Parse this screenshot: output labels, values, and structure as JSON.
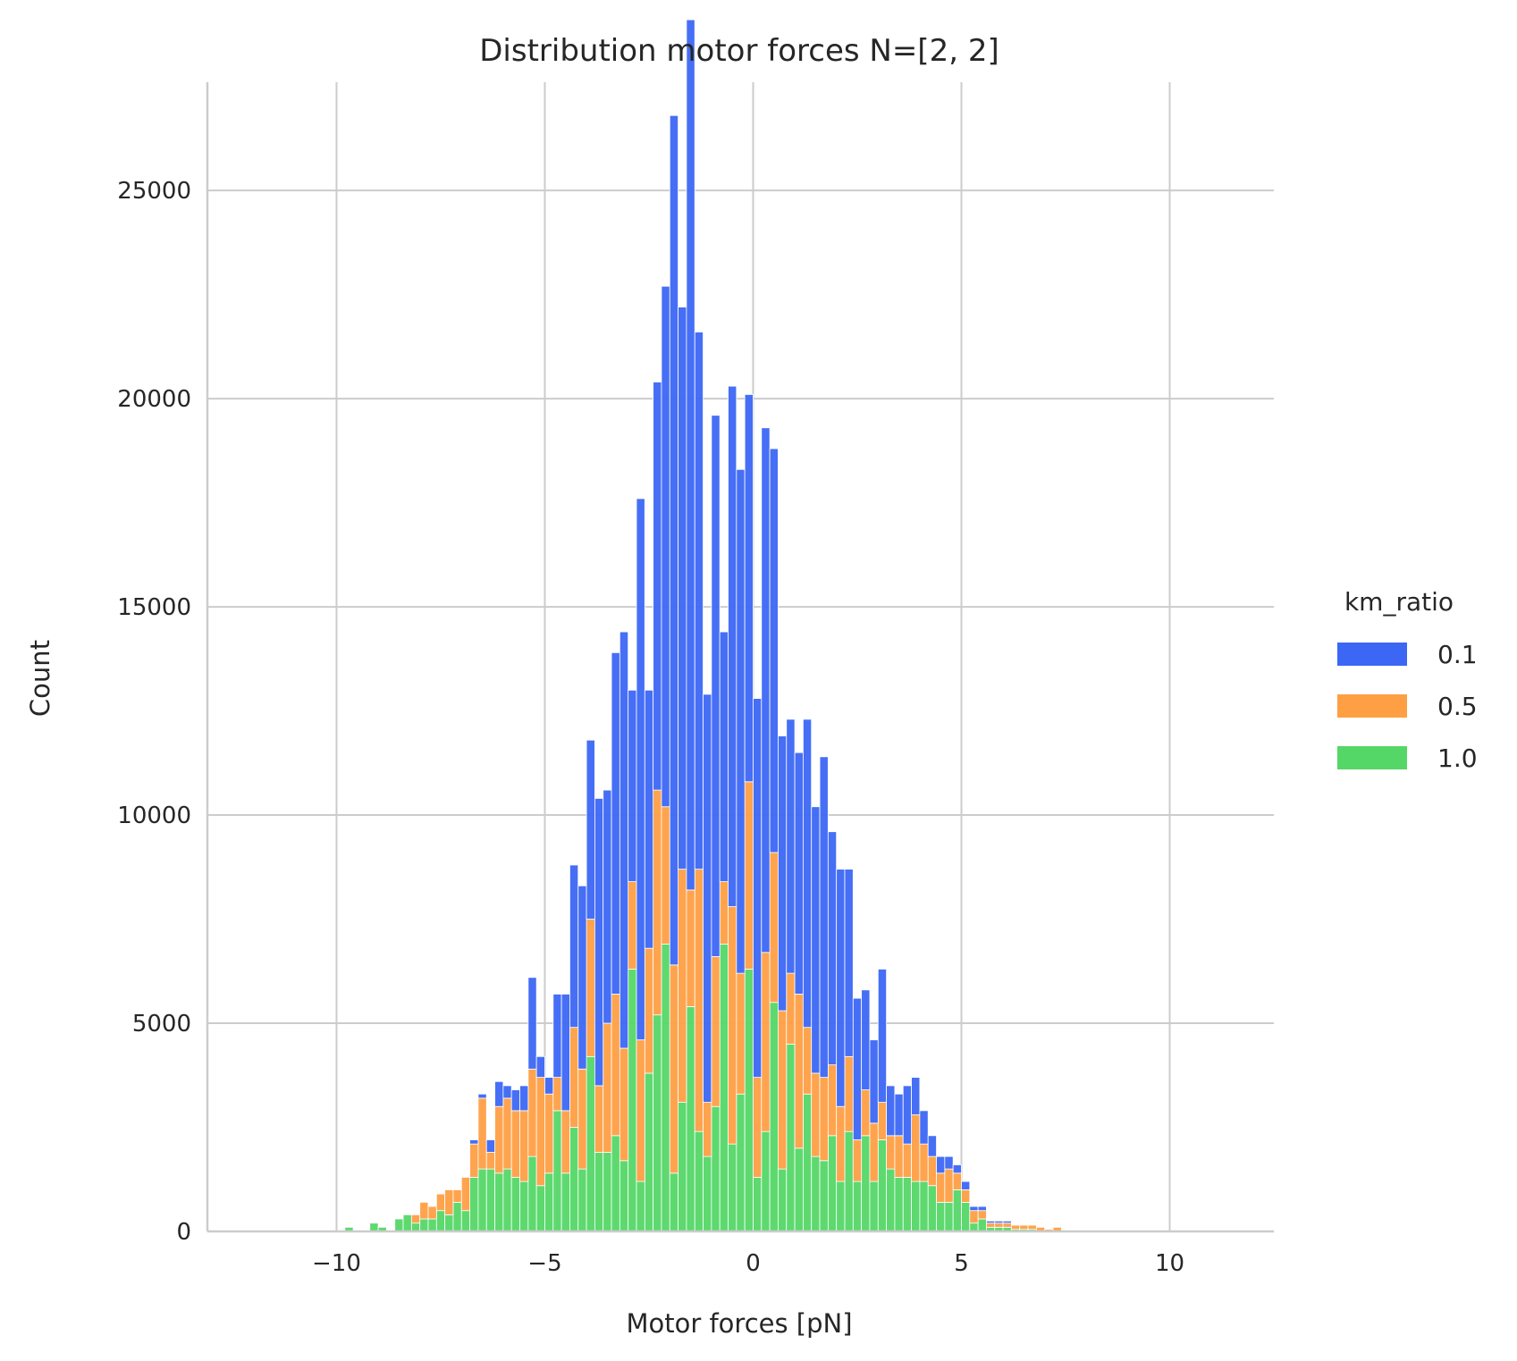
{
  "chart_data": {
    "type": "bar",
    "title": "Distribution motor forces N=[2, 2]",
    "xlabel": "Motor forces [pN]",
    "ylabel": "Count",
    "xlim": [
      -13.1,
      12.5
    ],
    "ylim": [
      0,
      27600
    ],
    "stacked": true,
    "grid": true,
    "legend_position": "right",
    "xticks": [
      {
        "value": -10,
        "label": "−10"
      },
      {
        "value": -5,
        "label": "−5"
      },
      {
        "value": 0,
        "label": "0"
      },
      {
        "value": 5,
        "label": "5"
      },
      {
        "value": 10,
        "label": "10"
      }
    ],
    "yticks": [
      {
        "value": 0,
        "label": "0"
      },
      {
        "value": 5000,
        "label": "5000"
      },
      {
        "value": 10000,
        "label": "10000"
      },
      {
        "value": 15000,
        "label": "15000"
      },
      {
        "value": 20000,
        "label": "20000"
      },
      {
        "value": 25000,
        "label": "25000"
      }
    ],
    "legend_title": "km_ratio",
    "bin_start": -9.8,
    "bin_width": 0.2,
    "series": [
      {
        "name": "1.0",
        "color": "#55d767",
        "values": [
          100,
          0,
          0,
          200,
          100,
          0,
          300,
          400,
          200,
          300,
          300,
          500,
          400,
          700,
          500,
          1300,
          1500,
          1500,
          1400,
          1500,
          1300,
          1200,
          1800,
          1100,
          1400,
          2900,
          1400,
          2500,
          1500,
          4200,
          1900,
          1900,
          2300,
          1700,
          6300,
          1200,
          3800,
          5200,
          6900,
          1400,
          3100,
          5400,
          2400,
          1800,
          3000,
          6900,
          2100,
          3300,
          6300,
          1300,
          2400,
          5500,
          1500,
          4500,
          2000,
          3300,
          1800,
          1700,
          2300,
          1200,
          2400,
          1200,
          2300,
          1200,
          2200,
          1500,
          1300,
          1300,
          1200,
          1200,
          1100,
          700,
          700,
          1000,
          700,
          200,
          300,
          100,
          100,
          100,
          50,
          50,
          50,
          0,
          0,
          0
        ]
      },
      {
        "name": "0.5",
        "color": "#ff9f44",
        "values": [
          0,
          0,
          0,
          0,
          0,
          0,
          0,
          0,
          200,
          400,
          300,
          400,
          600,
          300,
          800,
          800,
          1700,
          400,
          1600,
          1700,
          1600,
          1700,
          2100,
          2600,
          1900,
          800,
          1500,
          2400,
          2400,
          3300,
          1600,
          3100,
          3400,
          2700,
          2100,
          3400,
          3000,
          5400,
          3300,
          5000,
          5600,
          2800,
          6300,
          1300,
          3600,
          1500,
          5700,
          2900,
          4500,
          2400,
          4300,
          3600,
          3800,
          1700,
          3700,
          1600,
          2000,
          2000,
          1700,
          1800,
          1800,
          1000,
          1100,
          1400,
          900,
          800,
          1000,
          800,
          1600,
          900,
          700,
          700,
          800,
          400,
          300,
          300,
          200,
          100,
          100,
          100,
          100,
          100,
          100,
          100,
          50,
          100
        ]
      },
      {
        "name": "0.1",
        "color": "#3c67f5",
        "values": [
          0,
          0,
          0,
          0,
          0,
          0,
          0,
          0,
          0,
          0,
          0,
          0,
          0,
          0,
          0,
          100,
          100,
          300,
          600,
          300,
          500,
          600,
          2200,
          500,
          400,
          2000,
          2800,
          3900,
          4400,
          4300,
          6900,
          5600,
          8200,
          10000,
          4600,
          13000,
          6200,
          9800,
          12500,
          20400,
          13500,
          20900,
          12900,
          9800,
          13000,
          6000,
          12500,
          12100,
          9300,
          9100,
          12600,
          9700,
          6600,
          6100,
          5800,
          7400,
          6400,
          7700,
          5600,
          5700,
          4500,
          3400,
          2400,
          2000,
          3200,
          1200,
          1000,
          1400,
          900,
          800,
          500,
          400,
          300,
          200,
          200,
          100,
          100,
          50,
          50,
          50,
          0,
          0,
          0,
          0,
          0,
          0
        ]
      }
    ]
  }
}
